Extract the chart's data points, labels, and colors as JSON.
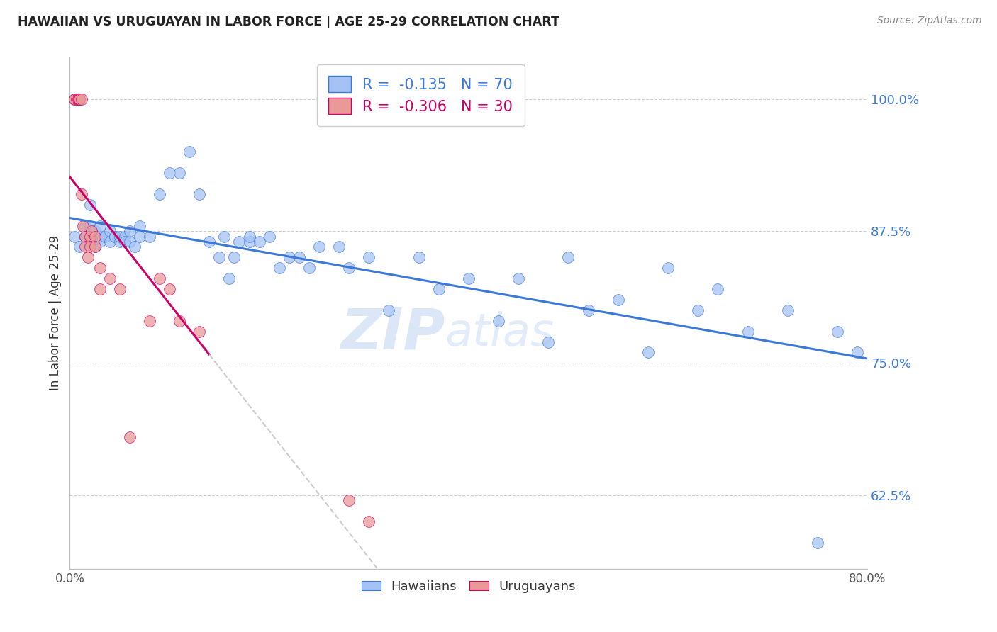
{
  "title": "HAWAIIAN VS URUGUAYAN IN LABOR FORCE | AGE 25-29 CORRELATION CHART",
  "source": "Source: ZipAtlas.com",
  "ylabel": "In Labor Force | Age 25-29",
  "xlim": [
    0.0,
    0.8
  ],
  "ylim": [
    0.555,
    1.04
  ],
  "xticks": [
    0.0,
    0.1,
    0.2,
    0.3,
    0.4,
    0.5,
    0.6,
    0.7,
    0.8
  ],
  "xticklabels": [
    "0.0%",
    "",
    "",
    "",
    "",
    "",
    "",
    "",
    "80.0%"
  ],
  "ytick_positions": [
    0.625,
    0.75,
    0.875,
    1.0
  ],
  "ytick_labels": [
    "62.5%",
    "75.0%",
    "87.5%",
    "100.0%"
  ],
  "legend_R_blue": "-0.135",
  "legend_N_blue": "70",
  "legend_R_pink": "-0.306",
  "legend_N_pink": "30",
  "blue_color": "#a4c2f4",
  "pink_color": "#ea9999",
  "trend_blue_color": "#3c78d8",
  "trend_pink_color": "#cc0066",
  "trend_pink_dash_color": "#cccccc",
  "hawaiians_x": [
    0.005,
    0.01,
    0.015,
    0.015,
    0.02,
    0.02,
    0.02,
    0.025,
    0.025,
    0.03,
    0.03,
    0.03,
    0.035,
    0.035,
    0.04,
    0.04,
    0.045,
    0.045,
    0.05,
    0.05,
    0.055,
    0.055,
    0.06,
    0.06,
    0.065,
    0.07,
    0.07,
    0.08,
    0.09,
    0.1,
    0.11,
    0.12,
    0.13,
    0.14,
    0.15,
    0.155,
    0.16,
    0.165,
    0.17,
    0.18,
    0.18,
    0.19,
    0.2,
    0.21,
    0.22,
    0.23,
    0.24,
    0.25,
    0.27,
    0.28,
    0.3,
    0.32,
    0.35,
    0.37,
    0.4,
    0.43,
    0.45,
    0.48,
    0.5,
    0.52,
    0.55,
    0.58,
    0.6,
    0.63,
    0.65,
    0.68,
    0.72,
    0.75,
    0.77,
    0.79
  ],
  "hawaiians_y": [
    0.87,
    0.86,
    0.88,
    0.87,
    0.865,
    0.88,
    0.9,
    0.86,
    0.875,
    0.87,
    0.88,
    0.865,
    0.87,
    0.87,
    0.865,
    0.875,
    0.87,
    0.87,
    0.865,
    0.87,
    0.87,
    0.865,
    0.865,
    0.875,
    0.86,
    0.87,
    0.88,
    0.87,
    0.91,
    0.93,
    0.93,
    0.95,
    0.91,
    0.865,
    0.85,
    0.87,
    0.83,
    0.85,
    0.865,
    0.865,
    0.87,
    0.865,
    0.87,
    0.84,
    0.85,
    0.85,
    0.84,
    0.86,
    0.86,
    0.84,
    0.85,
    0.8,
    0.85,
    0.82,
    0.83,
    0.79,
    0.83,
    0.77,
    0.85,
    0.8,
    0.81,
    0.76,
    0.84,
    0.8,
    0.82,
    0.78,
    0.8,
    0.58,
    0.78,
    0.76
  ],
  "uruguayans_x": [
    0.005,
    0.005,
    0.007,
    0.008,
    0.009,
    0.01,
    0.01,
    0.012,
    0.012,
    0.013,
    0.015,
    0.015,
    0.018,
    0.02,
    0.02,
    0.022,
    0.025,
    0.025,
    0.03,
    0.03,
    0.04,
    0.05,
    0.06,
    0.08,
    0.09,
    0.1,
    0.11,
    0.13,
    0.28,
    0.3
  ],
  "uruguayans_y": [
    1.0,
    1.0,
    1.0,
    1.0,
    1.0,
    1.0,
    1.0,
    1.0,
    0.91,
    0.88,
    0.87,
    0.86,
    0.85,
    0.87,
    0.86,
    0.875,
    0.87,
    0.86,
    0.82,
    0.84,
    0.83,
    0.82,
    0.68,
    0.79,
    0.83,
    0.82,
    0.79,
    0.78,
    0.62,
    0.6
  ],
  "watermark_zip": "ZIP",
  "watermark_atlas": "atlas",
  "background_color": "#ffffff",
  "grid_color": "#d0d0d0"
}
